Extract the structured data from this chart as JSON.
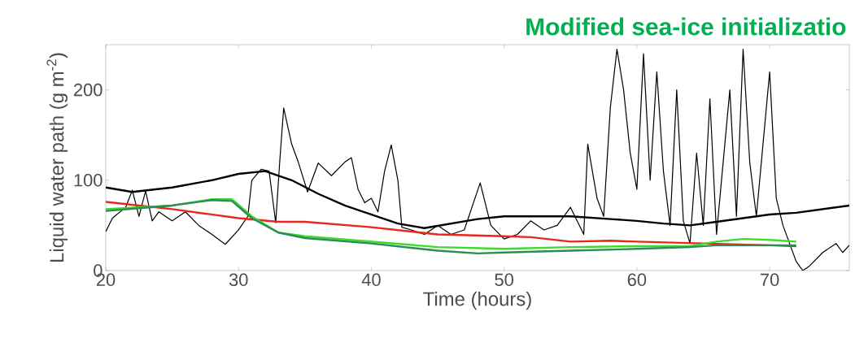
{
  "chart_data": {
    "type": "line",
    "title": "Modified sea-ice initializatio",
    "xlabel": "Time (hours)",
    "ylabel": "Liquid water path (g m$^{-2}$)",
    "xlim": [
      20,
      76
    ],
    "ylim": [
      0,
      250
    ],
    "xticks": [
      20,
      30,
      40,
      50,
      60,
      70
    ],
    "yticks": [
      0,
      100,
      200
    ],
    "series": [
      {
        "color": "#000000",
        "x": [
          20,
          20.5,
          21.5,
          22,
          22.5,
          23,
          23.5,
          24,
          25,
          26,
          27,
          28,
          29,
          30,
          30.7,
          31,
          31.7,
          32.3,
          32.8,
          33.1,
          33.4,
          34,
          34.5,
          35.2,
          36,
          37,
          38,
          38.5,
          39,
          39.5,
          40,
          40.5,
          41,
          41.5,
          42,
          42.3,
          43,
          44,
          45,
          46,
          47,
          48.2,
          49,
          50,
          51,
          52,
          53,
          54,
          55,
          55.5,
          56,
          56.3,
          57,
          57.5,
          58,
          58.5,
          59,
          59.5,
          60,
          60.5,
          61,
          61.5,
          62,
          62.5,
          63,
          63.5,
          64,
          64.5,
          65,
          65.5,
          66,
          67,
          67.5,
          68,
          68.5,
          69,
          70,
          70.5,
          71,
          72,
          72.5,
          73,
          74,
          75,
          75.5,
          76
        ],
        "values": [
          43,
          58,
          70,
          89,
          60,
          88,
          55,
          65,
          55,
          65,
          50,
          40,
          29,
          45,
          60,
          100,
          112,
          110,
          53,
          120,
          180,
          140,
          120,
          87,
          119,
          105,
          120,
          125,
          90,
          75,
          80,
          65,
          110,
          139,
          100,
          48,
          45,
          40,
          50,
          40,
          45,
          97,
          50,
          35,
          40,
          55,
          45,
          50,
          70,
          55,
          40,
          140,
          80,
          60,
          180,
          245,
          200,
          130,
          90,
          240,
          100,
          220,
          110,
          50,
          200,
          55,
          30,
          130,
          50,
          190,
          40,
          200,
          60,
          245,
          120,
          60,
          220,
          80,
          50,
          10,
          0,
          5,
          20,
          30,
          20,
          28
        ]
      },
      {
        "color": "#000000",
        "x": [
          20,
          22,
          25,
          28,
          30,
          32,
          34,
          36,
          38,
          40,
          42,
          44,
          46,
          48,
          50,
          52,
          55,
          58,
          60,
          62,
          64,
          66,
          68,
          70,
          72,
          74,
          76
        ],
        "values": [
          92,
          87,
          92,
          100,
          107,
          110,
          100,
          85,
          72,
          62,
          52,
          47,
          52,
          57,
          60,
          60,
          60,
          57,
          55,
          52,
          50,
          54,
          58,
          62,
          64,
          68,
          72
        ]
      },
      {
        "color": "#e8261c",
        "x": [
          20,
          25,
          30,
          33,
          35,
          40,
          45,
          50,
          52,
          55,
          58,
          60,
          65,
          70,
          72
        ],
        "values": [
          76,
          68,
          58,
          54,
          54,
          48,
          40,
          38,
          37,
          32,
          33,
          32,
          30,
          28,
          27
        ]
      },
      {
        "color": "#3bdc2a",
        "x": [
          20,
          25,
          28,
          29.5,
          31,
          33,
          35,
          40,
          45,
          50,
          55,
          60,
          64,
          66,
          68,
          70,
          72
        ],
        "values": [
          68,
          72,
          79,
          79,
          60,
          42,
          38,
          32,
          26,
          24,
          26,
          27,
          27,
          32,
          35,
          34,
          32
        ]
      },
      {
        "color": "#2e8b57",
        "x": [
          20,
          25,
          28,
          29.5,
          31,
          33,
          35,
          40,
          45,
          48,
          50,
          55,
          60,
          64,
          66,
          70,
          72
        ],
        "values": [
          66,
          72,
          78,
          77,
          58,
          42,
          36,
          30,
          22,
          19,
          20,
          22,
          24,
          26,
          28,
          28,
          28
        ]
      }
    ]
  }
}
